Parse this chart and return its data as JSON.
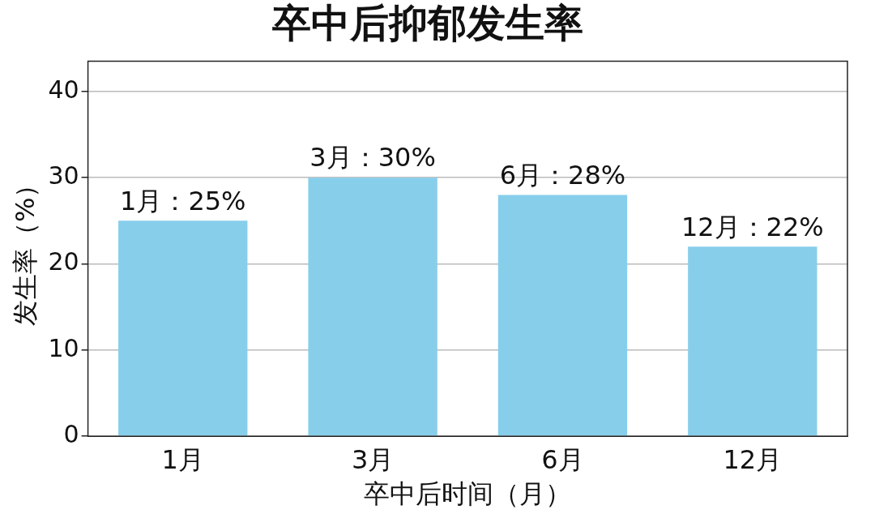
{
  "chart_data": {
    "type": "bar",
    "title": "卒中后抑郁发生率",
    "xlabel": "卒中后时间（月）",
    "ylabel": "发生率（%）",
    "categories": [
      "1月",
      "3月",
      "6月",
      "12月"
    ],
    "values": [
      25,
      30,
      28,
      22
    ],
    "value_labels": [
      "1月：25%",
      "3月：30%",
      "6月：28%",
      "12月：22%"
    ],
    "color": "#87ceeb",
    "ylim": [
      0,
      43.5
    ],
    "yticks": [
      0,
      10,
      20,
      30,
      40
    ],
    "grid": "y",
    "legend": false
  }
}
